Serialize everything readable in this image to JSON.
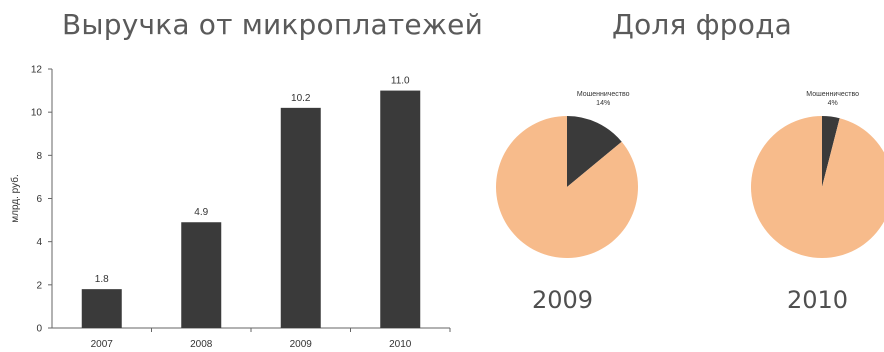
{
  "chart_data": [
    {
      "type": "bar",
      "title": "Выручка от микроплатежей",
      "ylabel": "млрд. руб.",
      "xlabel": "",
      "categories": [
        "2007",
        "2008",
        "2009",
        "2010"
      ],
      "values": [
        1.8,
        4.9,
        10.2,
        11.0
      ],
      "data_labels": [
        "1.8",
        "4.9",
        "10.2",
        "11.0"
      ],
      "ylim": [
        0,
        12
      ],
      "yticks": [
        0,
        2,
        4,
        6,
        8,
        10,
        12
      ],
      "grid": false,
      "bar_color": "#3a3a3a"
    },
    {
      "type": "pie",
      "title": "Доля фрода",
      "pies": [
        {
          "label": "2009",
          "slices": [
            {
              "name": "Мошенничество",
              "value": 14,
              "value_label": "14%",
              "color": "#3a3a3a"
            },
            {
              "name": "",
              "value": 86,
              "color": "#f7bb8b"
            }
          ]
        },
        {
          "label": "2010",
          "slices": [
            {
              "name": "Мошенничество",
              "value": 4,
              "value_label": "4%",
              "color": "#3a3a3a"
            },
            {
              "name": "",
              "value": 96,
              "color": "#f7bb8b"
            }
          ]
        }
      ]
    }
  ]
}
